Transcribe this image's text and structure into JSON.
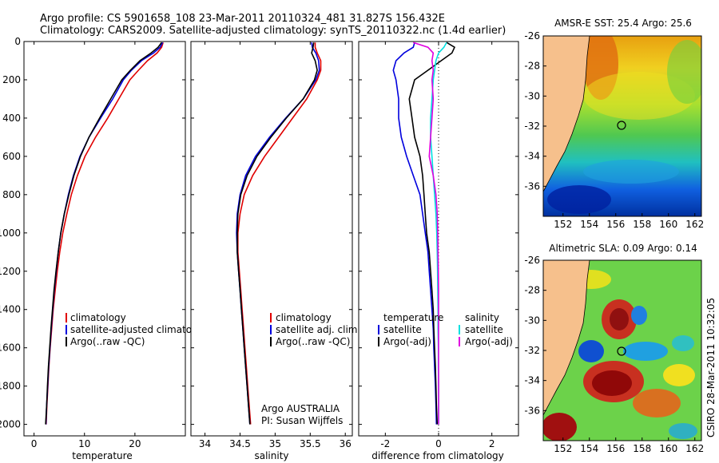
{
  "title": {
    "line1": "Argo profile: CS 5901658_108 23-Mar-2011 20110324_481 31.827S 156.432E",
    "line2": "Climatology: CARS2009. Satellite-adjusted climatology: synTS_20110322.nc (1.4d earlier)"
  },
  "side_label": "CSIRO 28-Mar-2011 10:32:05",
  "colors": {
    "climatology": "#e00000",
    "satellite": "#0000dd",
    "argo": "#000000",
    "satellite_salinity": "#00e0e0",
    "argo_salinity": "#e000e0",
    "land": "#f6c08c"
  },
  "chart_data": [
    {
      "type": "line",
      "name": "temperature",
      "xlabel": "temperature",
      "xlim": [
        -2,
        30
      ],
      "xticks": [
        0,
        10,
        20
      ],
      "ylim": [
        0,
        2060
      ],
      "yticks": [
        0,
        200,
        400,
        600,
        800,
        1000,
        1200,
        1400,
        1600,
        1800,
        2000
      ],
      "depth": [
        5,
        30,
        60,
        100,
        150,
        200,
        300,
        400,
        500,
        600,
        700,
        800,
        900,
        1000,
        1100,
        1200,
        1300,
        1400,
        1500,
        1600,
        1700,
        1800,
        1900,
        2000
      ],
      "series": [
        {
          "name": "climatology",
          "values": [
            25.6,
            25.3,
            24.4,
            22.5,
            20.7,
            19.0,
            16.8,
            14.6,
            12.2,
            10.1,
            8.6,
            7.4,
            6.5,
            5.7,
            5.1,
            4.6,
            4.2,
            3.8,
            3.5,
            3.2,
            2.95,
            2.75,
            2.55,
            2.4
          ]
        },
        {
          "name": "satellite-adjusted climatology",
          "values": [
            25.5,
            25.0,
            23.7,
            21.3,
            19.3,
            17.7,
            15.6,
            13.2,
            10.9,
            9.1,
            7.8,
            6.8,
            6.0,
            5.3,
            4.8,
            4.4,
            4.0,
            3.7,
            3.4,
            3.15,
            2.9,
            2.7,
            2.5,
            2.35
          ]
        },
        {
          "name": "Argo(..raw -QC)",
          "values": [
            25.3,
            24.6,
            23.2,
            21.0,
            19.1,
            17.4,
            15.2,
            13.0,
            10.9,
            9.2,
            7.9,
            6.9,
            6.0,
            5.3,
            4.8,
            4.35,
            3.95,
            3.65,
            3.35,
            3.1,
            2.85,
            2.65,
            2.5,
            2.3
          ]
        }
      ],
      "legend": [
        "climatology",
        "satellite-adjusted climatology",
        "Argo(..raw -QC)"
      ]
    },
    {
      "type": "line",
      "name": "salinity",
      "xlabel": "salinity",
      "xlim": [
        33.8,
        36.1
      ],
      "xticks": [
        34,
        34.5,
        35,
        35.5,
        36
      ],
      "ylim": [
        0,
        2060
      ],
      "depth": [
        5,
        30,
        60,
        100,
        150,
        200,
        300,
        400,
        500,
        600,
        700,
        800,
        900,
        1000,
        1100,
        1200,
        1300,
        1400,
        1500,
        1600,
        1700,
        1800,
        1900,
        2000
      ],
      "series": [
        {
          "name": "climatology",
          "values": [
            35.57,
            35.57,
            35.6,
            35.65,
            35.65,
            35.6,
            35.45,
            35.25,
            35.05,
            34.85,
            34.68,
            34.56,
            34.5,
            34.47,
            34.47,
            34.49,
            34.51,
            34.53,
            34.55,
            34.57,
            34.59,
            34.61,
            34.63,
            34.65
          ]
        },
        {
          "name": "satellite adj. clim.",
          "values": [
            35.52,
            35.53,
            35.58,
            35.62,
            35.63,
            35.58,
            35.4,
            35.15,
            34.92,
            34.72,
            34.58,
            34.5,
            34.46,
            34.45,
            34.46,
            34.48,
            34.5,
            34.52,
            34.54,
            34.56,
            34.58,
            34.6,
            34.62,
            34.64
          ]
        },
        {
          "name": "Argo(..raw -QC)",
          "values": [
            35.55,
            35.54,
            35.52,
            35.57,
            35.6,
            35.56,
            35.4,
            35.16,
            34.94,
            34.74,
            34.6,
            34.51,
            34.47,
            34.46,
            34.46,
            34.48,
            34.5,
            34.52,
            34.54,
            34.56,
            34.58,
            34.6,
            34.62,
            34.64
          ]
        }
      ],
      "legend": [
        "climatology",
        "satellite adj. clim.",
        "Argo(..raw -QC)"
      ],
      "annotation": [
        "Argo AUSTRALIA",
        "PI: Susan Wijffels"
      ]
    },
    {
      "type": "line",
      "name": "difference from climatology",
      "xlabel": "difference from climatology",
      "xlim": [
        -3,
        3
      ],
      "xticks": [
        -2,
        0,
        2
      ],
      "ylim": [
        0,
        2060
      ],
      "zero_line": true,
      "depth": [
        5,
        30,
        60,
        100,
        150,
        200,
        300,
        400,
        500,
        600,
        700,
        800,
        900,
        1000,
        1100,
        1200,
        1300,
        1400,
        1500,
        1600,
        1700,
        1800,
        1900,
        2000
      ],
      "series": [
        {
          "name": "temperature satellite",
          "values": [
            -0.9,
            -0.95,
            -1.3,
            -1.6,
            -1.7,
            -1.6,
            -1.5,
            -1.5,
            -1.4,
            -1.2,
            -0.95,
            -0.7,
            -0.6,
            -0.5,
            -0.4,
            -0.35,
            -0.3,
            -0.25,
            -0.2,
            -0.18,
            -0.15,
            -0.12,
            -0.1,
            -0.08
          ]
        },
        {
          "name": "temperature Argo(-adj)",
          "values": [
            0.3,
            0.6,
            0.5,
            0.1,
            -0.4,
            -0.9,
            -1.1,
            -1.0,
            -0.9,
            -0.7,
            -0.6,
            -0.55,
            -0.5,
            -0.45,
            -0.35,
            -0.3,
            -0.25,
            -0.2,
            -0.18,
            -0.15,
            -0.12,
            -0.1,
            -0.08,
            -0.05
          ]
        },
        {
          "name": "salinity satellite",
          "values": [
            0.3,
            0.2,
            0.0,
            -0.1,
            -0.15,
            -0.2,
            -0.25,
            -0.3,
            -0.3,
            -0.25,
            -0.2,
            -0.15,
            -0.1,
            -0.07,
            -0.05,
            -0.04,
            -0.03,
            -0.02,
            -0.02,
            -0.01,
            -0.01,
            0.0,
            0.0,
            0.0
          ]
        },
        {
          "name": "salinity Argo(-adj)",
          "values": [
            -0.95,
            -0.4,
            -0.2,
            -0.25,
            -0.2,
            -0.25,
            -0.2,
            -0.25,
            -0.3,
            -0.35,
            -0.2,
            -0.1,
            -0.05,
            -0.03,
            -0.02,
            -0.01,
            0.0,
            0.0,
            0.0,
            0.0,
            0.0,
            0.0,
            0.0,
            0.0
          ]
        }
      ],
      "legend_temperature": {
        "heading": "temperature",
        "items": [
          "satellite",
          "Argo(-adj)"
        ]
      },
      "legend_salinity": {
        "heading": "salinity",
        "items": [
          "satellite",
          "Argo(-adj)"
        ]
      }
    },
    {
      "type": "heatmap",
      "name": "AMSR-E SST map",
      "title": "AMSR-E SST: 25.4 Argo: 25.6",
      "xlim": [
        150.5,
        162.5
      ],
      "ylim": [
        -38,
        -26
      ],
      "xticks": [
        152,
        154,
        156,
        158,
        160,
        162
      ],
      "yticks": [
        -26,
        -28,
        -30,
        -32,
        -34,
        -36
      ],
      "marker": {
        "lon": 156.432,
        "lat": -31.827
      }
    },
    {
      "type": "heatmap",
      "name": "Altimetric SLA map",
      "title": "Altimetric SLA: 0.09 Argo: 0.14",
      "xlim": [
        150.5,
        162.5
      ],
      "ylim": [
        -38,
        -26
      ],
      "xticks": [
        152,
        154,
        156,
        158,
        160,
        162
      ],
      "yticks": [
        -26,
        -28,
        -30,
        -32,
        -34,
        -36
      ],
      "marker": {
        "lon": 156.432,
        "lat": -31.827
      }
    }
  ]
}
